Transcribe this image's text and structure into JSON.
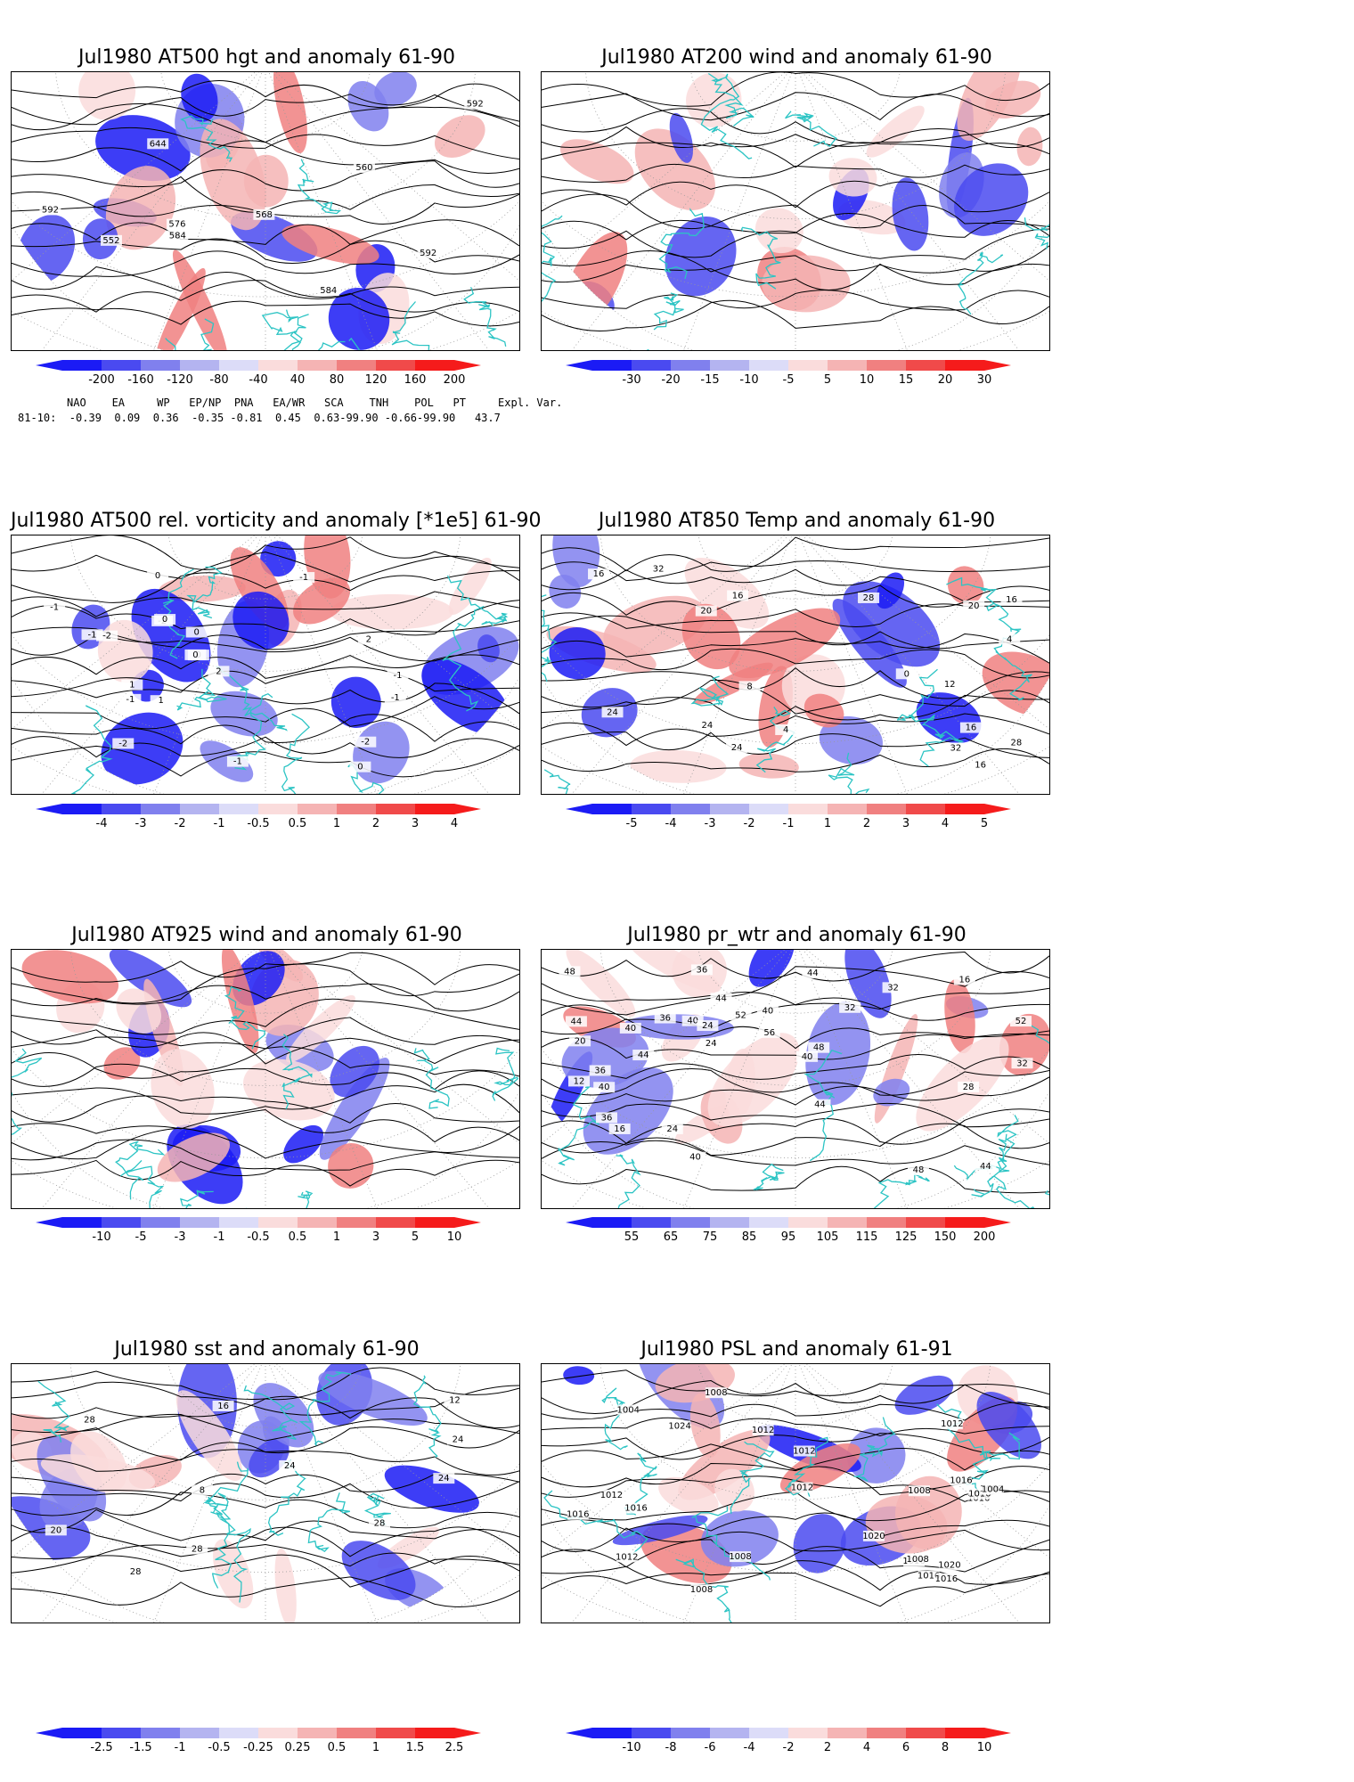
{
  "panels": [
    {
      "id": "p1",
      "title": "Jul1980 AT500 hgt and anomaly 61-90",
      "contour_labels": [
        "644",
        "552",
        "560",
        "592",
        "584",
        "568",
        "576",
        "584",
        "592",
        "592"
      ],
      "colorbar": {
        "labels": [
          "-200",
          "-160",
          "-120",
          "-80",
          "-40",
          "40",
          "80",
          "120",
          "160",
          "200"
        ]
      }
    },
    {
      "id": "p2",
      "title": "Jul1980 AT200 wind and anomaly 61-90",
      "contour_labels": [],
      "colorbar": {
        "labels": [
          "-30",
          "-20",
          "-15",
          "-10",
          "-5",
          "5",
          "10",
          "15",
          "20",
          "30"
        ]
      }
    },
    {
      "id": "p3",
      "title": "Jul1980 AT500 rel. vorticity and anomaly [*1e5] 61-90",
      "contour_labels": [
        "-1",
        "-2",
        "0",
        "-1",
        "-2",
        "2",
        "-1",
        "1",
        "-2",
        "0",
        "-1",
        "1",
        "2",
        "-1",
        "0",
        "-2",
        "-1",
        "0",
        "-1",
        "0",
        "0"
      ],
      "colorbar": {
        "labels": [
          "-4",
          "-3",
          "-2",
          "-1",
          "-0.5",
          "0.5",
          "1",
          "2",
          "3",
          "4"
        ]
      }
    },
    {
      "id": "p4",
      "title": "Jul1980 AT850 Temp and anomaly 61-90",
      "contour_labels": [
        "24",
        "20",
        "16",
        "16",
        "8",
        "12",
        "24",
        "28",
        "32",
        "32",
        "28",
        "24",
        "20",
        "16",
        "16",
        "16",
        "4",
        "0",
        "4"
      ],
      "colorbar": {
        "labels": [
          "-5",
          "-4",
          "-3",
          "-2",
          "-1",
          "1",
          "2",
          "3",
          "4",
          "5"
        ]
      }
    },
    {
      "id": "p5",
      "title": "Jul1980 AT925 wind and anomaly 61-90",
      "contour_labels": [],
      "colorbar": {
        "labels": [
          "-10",
          "-5",
          "-3",
          "-1",
          "-0.5",
          "0.5",
          "1",
          "3",
          "5",
          "10"
        ]
      }
    },
    {
      "id": "p6",
      "title": "Jul1980 pr_wtr and anomaly 61-90",
      "contour_labels": [
        "32",
        "36",
        "44",
        "52",
        "40",
        "36",
        "40",
        "44",
        "32",
        "28",
        "24",
        "20",
        "16",
        "24",
        "12",
        "16",
        "40",
        "44",
        "48",
        "44",
        "36",
        "40",
        "44",
        "48",
        "40",
        "36",
        "32",
        "56",
        "52",
        "48",
        "44",
        "24",
        "40"
      ],
      "colorbar": {
        "labels": [
          "55",
          "65",
          "75",
          "85",
          "95",
          "105",
          "115",
          "125",
          "150",
          "200"
        ]
      }
    },
    {
      "id": "p7",
      "title": "Jul1980 sst and anomaly 61-90",
      "contour_labels": [
        "24",
        "28",
        "28",
        "8",
        "12",
        "16",
        "20",
        "24",
        "28",
        "28",
        "24"
      ],
      "colorbar": {
        "labels": [
          "-2.5",
          "-1.5",
          "-1",
          "-0.5",
          "-0.25",
          "0.25",
          "0.5",
          "1",
          "1.5",
          "2.5"
        ]
      }
    },
    {
      "id": "p8",
      "title": "Jul1980 PSL and anomaly 61-91",
      "contour_labels": [
        "1016",
        "1016",
        "1008",
        "1016",
        "1012",
        "1012",
        "1016",
        "1020",
        "1024",
        "1020",
        "1016",
        "1012",
        "1012",
        "1016",
        "1012",
        "1008",
        "1008",
        "1000",
        "1008",
        "1004",
        "1012",
        "1016",
        "1004",
        "1008",
        "1016"
      ],
      "colorbar": {
        "labels": [
          "-10",
          "-8",
          "-6",
          "-4",
          "-2",
          "2",
          "4",
          "6",
          "8",
          "10"
        ]
      }
    }
  ],
  "indices": {
    "header": "NAO    EA     WP   EP/NP  PNA   EA/WR   SCA    TNH    POL   PT     Expl. Var.",
    "row": "81-10:  -0.39  0.09  0.36  -0.35 -0.81  0.45  0.63-99.90 -0.66-99.90   43.7"
  },
  "colors": {
    "coast": "#2cc4c4",
    "contour": "#000000",
    "neg": [
      "#1b1bf5",
      "#4a4af0",
      "#8080ee",
      "#b4b4f0",
      "#dcdcf8"
    ],
    "pos": [
      "#fadcdc",
      "#f5b4b4",
      "#f08080",
      "#f04a4a",
      "#f51b1b"
    ]
  }
}
